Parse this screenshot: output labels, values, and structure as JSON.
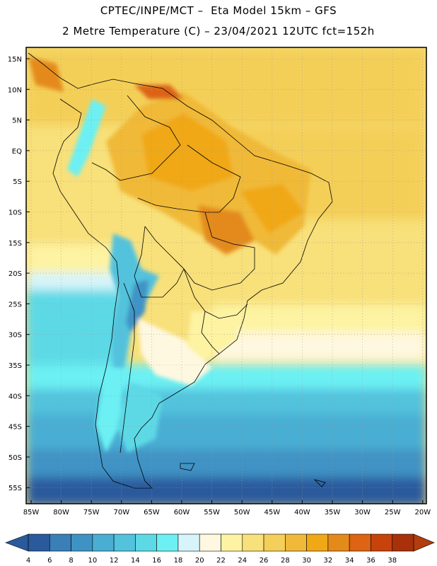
{
  "header": {
    "line1": "CPTEC/INPE/MCT –  Eta Model 15km – GFS",
    "line2": "2 Metre Temperature (C) – 23/04/2021 12UTC fct=152h"
  },
  "axes": {
    "lat_labels": [
      "15N",
      "10N",
      "5N",
      "EQ",
      "5S",
      "10S",
      "15S",
      "20S",
      "25S",
      "30S",
      "35S",
      "40S",
      "45S",
      "50S",
      "55S"
    ],
    "lon_labels": [
      "85W",
      "80W",
      "75W",
      "70W",
      "65W",
      "60W",
      "55W",
      "50W",
      "45W",
      "40W",
      "35W",
      "30W",
      "25W",
      "20W"
    ]
  },
  "colorbar": {
    "levels": [
      "4",
      "6",
      "8",
      "10",
      "12",
      "14",
      "16",
      "18",
      "20",
      "22",
      "24",
      "26",
      "28",
      "30",
      "32",
      "34",
      "36",
      "38"
    ],
    "colors": [
      "#2a5a9c",
      "#3a7fb6",
      "#3f93c4",
      "#4aaed3",
      "#52c2dd",
      "#5dd9e6",
      "#6cf0f3",
      "#d6f4fa",
      "#fff8e0",
      "#fdf3a2",
      "#f8e07a",
      "#f4cf59",
      "#f0b939",
      "#f0a817",
      "#e48a1a",
      "#dc6412",
      "#c8420b",
      "#a8300b",
      "#b23d0e"
    ]
  }
}
